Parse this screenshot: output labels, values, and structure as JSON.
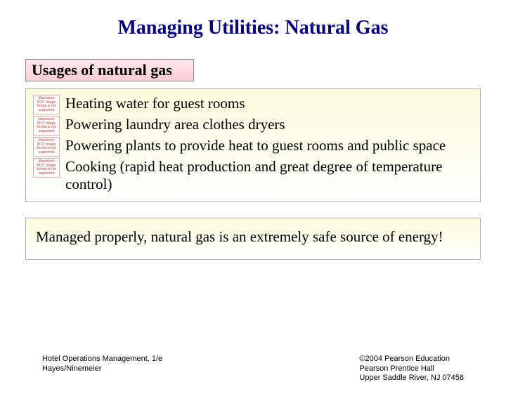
{
  "title": "Managing Utilities: Natural Gas",
  "subtitle": "Usages of natural gas",
  "bullets": {
    "b0": "Heating water for guest rooms",
    "b1": "Powering laundry area clothes dryers",
    "b2": "Powering plants to provide heat to guest rooms and public space",
    "b3": "Cooking (rapid heat production and great degree of temperature control)"
  },
  "icon_placeholder": "Macintosh PICT image format is not supported",
  "summary": "Managed properly, natural gas is an extremely safe source of energy!",
  "footer": {
    "left_line1": "Hotel Operations Management, 1/e",
    "left_line2": "Hayes/Ninemeier",
    "right_line1": "©2004 Pearson Education",
    "right_line2": "Pearson Prentice Hall",
    "right_line3": "Upper Saddle River, NJ 07458"
  },
  "colors": {
    "title_color": "#000080",
    "subtitle_bg_top": "#ffe8ed",
    "subtitle_bg_bottom": "#fccdd5",
    "content_bg_top": "#fdfbdc",
    "content_bg_bottom": "#ffffff",
    "text_color": "#000000",
    "icon_text_color": "#c04040"
  },
  "typography": {
    "title_fontsize": 28,
    "subtitle_fontsize": 22,
    "body_fontsize": 21,
    "footer_fontsize": 11,
    "title_font": "Times New Roman",
    "footer_font": "Arial"
  }
}
